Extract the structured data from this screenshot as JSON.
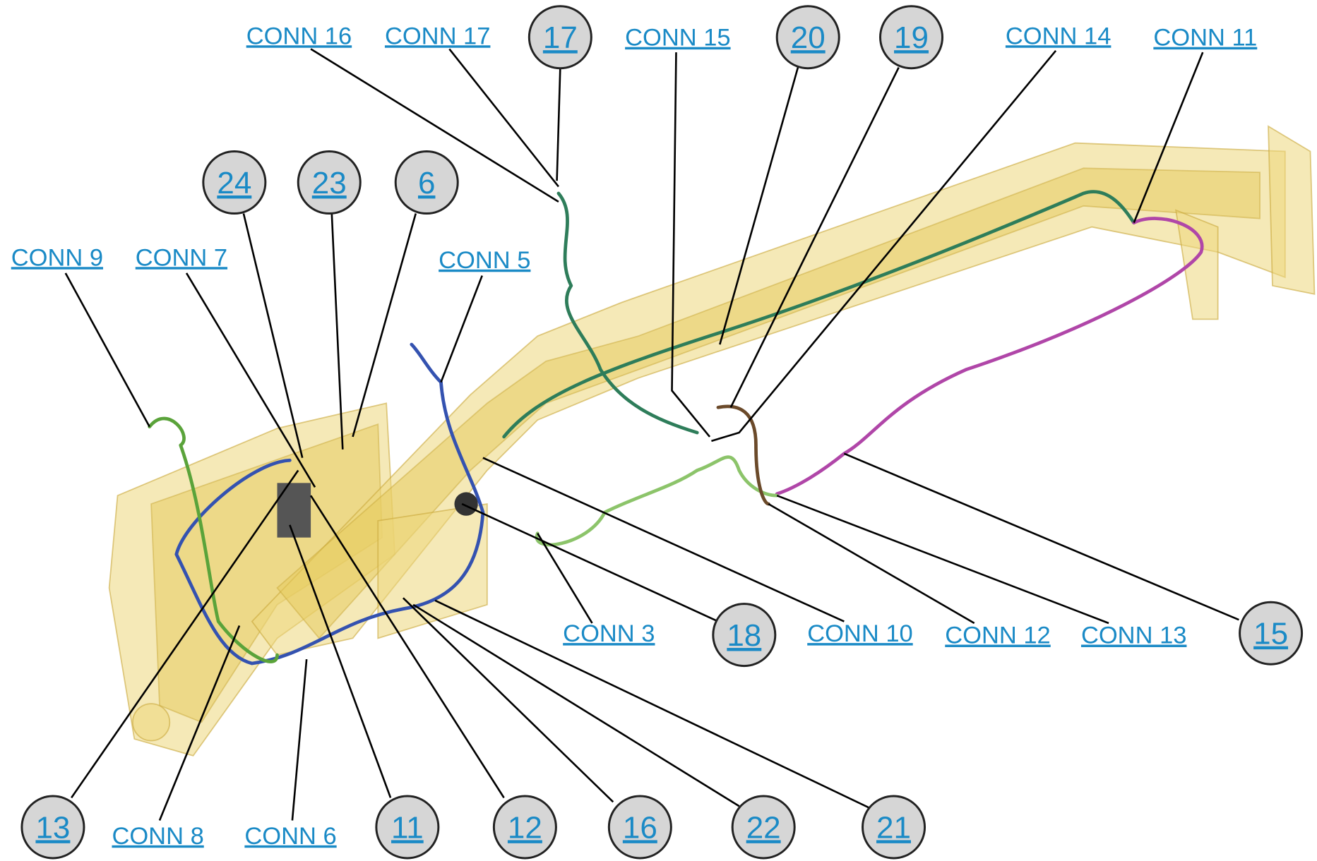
{
  "connectors": [
    "CONN 16",
    "CONN 17",
    "CONN 15",
    "CONN 14",
    "CONN 11",
    "CONN 9",
    "CONN 7",
    "CONN 5",
    "CONN 3",
    "CONN 10",
    "CONN 12",
    "CONN 13",
    "CONN 8",
    "CONN 6"
  ],
  "callouts": [
    "17",
    "20",
    "19",
    "24",
    "23",
    "6",
    "18",
    "15",
    "13",
    "11",
    "12",
    "16",
    "22",
    "21"
  ]
}
